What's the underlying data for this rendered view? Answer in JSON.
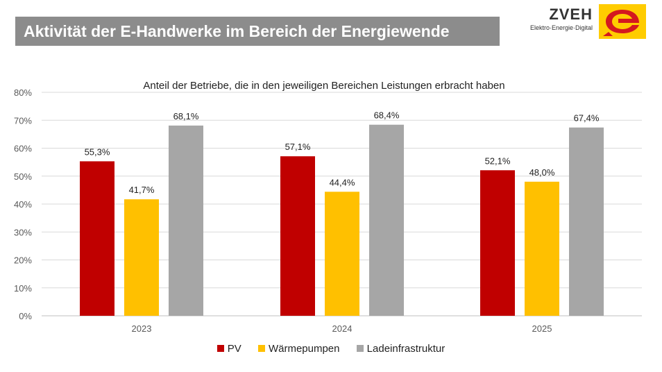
{
  "header": {
    "title": "Aktivität der E-Handwerke im Bereich der Energiewende",
    "logo_name": "ZVEH",
    "logo_tagline": "Elektro·Energie·Digital",
    "logo_mark": "zveh-logo-icon"
  },
  "chart_data": {
    "type": "bar",
    "title": "Anteil der Betriebe, die in den jeweiligen Bereichen Leistungen erbracht haben",
    "xlabel": "",
    "ylabel": "",
    "categories": [
      "2023",
      "2024",
      "2025"
    ],
    "series": [
      {
        "name": "PV",
        "color": "#c00000",
        "values": [
          55.3,
          57.1,
          52.1
        ],
        "labels": [
          "55,3%",
          "57,1%",
          "52,1%"
        ]
      },
      {
        "name": "Wärmepumpen",
        "color": "#ffc000",
        "values": [
          41.7,
          44.4,
          48.0
        ],
        "labels": [
          "41,7%",
          "44,4%",
          "48,0%"
        ]
      },
      {
        "name": "Ladeinfrastruktur",
        "color": "#a6a6a6",
        "values": [
          68.1,
          68.4,
          67.4
        ],
        "labels": [
          "68,1%",
          "68,4%",
          "67,4%"
        ]
      }
    ],
    "ylim": [
      0,
      80
    ],
    "yticks": [
      "0%",
      "10%",
      "20%",
      "30%",
      "40%",
      "50%",
      "60%",
      "70%",
      "80%"
    ],
    "grid": true,
    "legend_position": "bottom"
  }
}
